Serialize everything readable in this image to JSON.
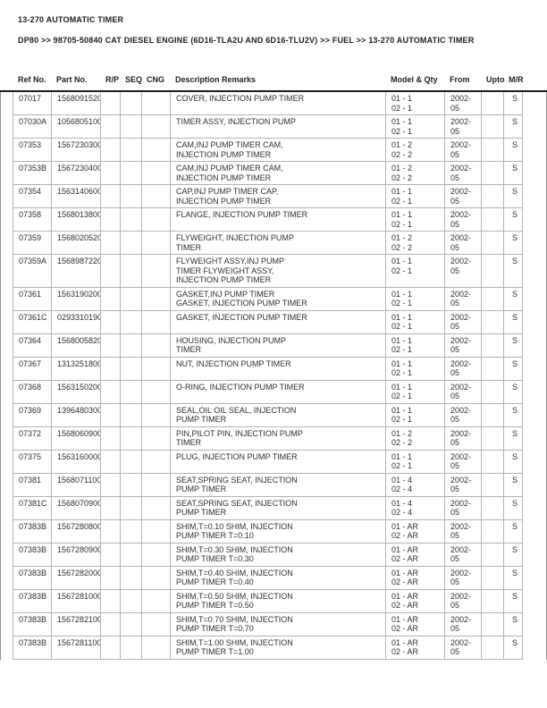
{
  "page": {
    "title": "13-270 AUTOMATIC TIMER",
    "breadcrumb": "DP80 >> 98705-50840 CAT DIESEL ENGINE (6D16-TLA2U AND 6D16-TLU2V) >> FUEL >> 13-270 AUTOMATIC TIMER"
  },
  "colors": {
    "rule": "#1c1c1c",
    "grid": "#b3b3b3",
    "text": "#2f2f2f",
    "page_edge": "#8f8f8f"
  },
  "table": {
    "headers": [
      "Ref No.",
      "Part No.",
      "R/P",
      "SEQ",
      "CNG",
      "Description Remarks",
      "Model & Qty",
      "From",
      "Upto",
      "M/R"
    ],
    "rows": [
      {
        "ref_no": "07017",
        "part_no": "1568091520",
        "rp": "",
        "seq": "",
        "cng": "",
        "description": [
          "COVER, INJECTION PUMP TIMER"
        ],
        "model_qty": [
          "01 - 1",
          "02 - 1"
        ],
        "from": "2002-05",
        "upto": "",
        "mr": "S"
      },
      {
        "ref_no": "07030A",
        "part_no": "1056805100",
        "rp": "",
        "seq": "",
        "cng": "",
        "description": [
          "TIMER ASSY, INJECTION PUMP"
        ],
        "model_qty": [
          "01 - 1",
          "02 - 1"
        ],
        "from": "2002-05",
        "upto": "",
        "mr": "S"
      },
      {
        "ref_no": "07353",
        "part_no": "1567230300",
        "rp": "",
        "seq": "",
        "cng": "",
        "description": [
          "CAM,INJ PUMP TIMER CAM,",
          "INJECTION PUMP TIMER"
        ],
        "model_qty": [
          "01 - 2",
          "02 - 2"
        ],
        "from": "2002-05",
        "upto": "",
        "mr": "S"
      },
      {
        "ref_no": "07353B",
        "part_no": "1567230400",
        "rp": "",
        "seq": "",
        "cng": "",
        "description": [
          "CAM,INJ PUMP TIMER CAM,",
          "INJECTION PUMP TIMER"
        ],
        "model_qty": [
          "01 - 2",
          "02 - 2"
        ],
        "from": "2002-05",
        "upto": "",
        "mr": "S"
      },
      {
        "ref_no": "07354",
        "part_no": "1563140600",
        "rp": "",
        "seq": "",
        "cng": "",
        "description": [
          "CAP,INJ PUMP TIMER CAP,",
          "INJECTION PUMP TIMER"
        ],
        "model_qty": [
          "01 - 1",
          "02 - 1"
        ],
        "from": "2002-05",
        "upto": "",
        "mr": "S"
      },
      {
        "ref_no": "07358",
        "part_no": "1568013800",
        "rp": "",
        "seq": "",
        "cng": "",
        "description": [
          "FLANGE, INJECTION PUMP TIMER"
        ],
        "model_qty": [
          "01 - 1",
          "02 - 1"
        ],
        "from": "2002-05",
        "upto": "",
        "mr": "S"
      },
      {
        "ref_no": "07359",
        "part_no": "1568020520",
        "rp": "",
        "seq": "",
        "cng": "",
        "description": [
          "FLYWEIGHT, INJECTION PUMP",
          "TIMER"
        ],
        "model_qty": [
          "01 - 2",
          "02 - 2"
        ],
        "from": "2002-05",
        "upto": "",
        "mr": "S"
      },
      {
        "ref_no": "07359A",
        "part_no": "1568987220",
        "rp": "",
        "seq": "",
        "cng": "",
        "description": [
          "FLYWEIGHT ASSY,INJ PUMP",
          "TIMER FLYWEIGHT ASSY,",
          "INJECTION PUMP TIMER"
        ],
        "model_qty": [
          "01 - 1",
          "02 - 1"
        ],
        "from": "2002-05",
        "upto": "",
        "mr": "S"
      },
      {
        "ref_no": "07361",
        "part_no": "1563190200",
        "rp": "",
        "seq": "",
        "cng": "",
        "description": [
          "GASKET,INJ PUMP TIMER",
          "GASKET, INJECTION PUMP TIMER"
        ],
        "model_qty": [
          "01 - 1",
          "02 - 1"
        ],
        "from": "2002-05",
        "upto": "",
        "mr": "S"
      },
      {
        "ref_no": "07361C",
        "part_no": "0293310190",
        "rp": "",
        "seq": "",
        "cng": "",
        "description": [
          "GASKET, INJECTION PUMP TIMER"
        ],
        "model_qty": [
          "01 - 1",
          "02 - 1"
        ],
        "from": "2002-05",
        "upto": "",
        "mr": "S"
      },
      {
        "ref_no": "07364",
        "part_no": "1568005820",
        "rp": "",
        "seq": "",
        "cng": "",
        "description": [
          "HOUSING, INJECTION PUMP",
          "TIMER"
        ],
        "model_qty": [
          "01 - 1",
          "02 - 1"
        ],
        "from": "2002-05",
        "upto": "",
        "mr": "S"
      },
      {
        "ref_no": "07367",
        "part_no": "1313251800",
        "rp": "",
        "seq": "",
        "cng": "",
        "description": [
          "NUT, INJECTION PUMP TIMER"
        ],
        "model_qty": [
          "01 - 1",
          "02 - 1"
        ],
        "from": "2002-05",
        "upto": "",
        "mr": "S"
      },
      {
        "ref_no": "07368",
        "part_no": "1563150200",
        "rp": "",
        "seq": "",
        "cng": "",
        "description": [
          "O-RING, INJECTION PUMP TIMER"
        ],
        "model_qty": [
          "01 - 1",
          "02 - 1"
        ],
        "from": "2002-05",
        "upto": "",
        "mr": "S"
      },
      {
        "ref_no": "07369",
        "part_no": "1396480300",
        "rp": "",
        "seq": "",
        "cng": "",
        "description": [
          "SEAL,OIL OIL SEAL, INJECTION",
          "PUMP TIMER"
        ],
        "model_qty": [
          "01 - 1",
          "02 - 1"
        ],
        "from": "2002-05",
        "upto": "",
        "mr": "S"
      },
      {
        "ref_no": "07372",
        "part_no": "1568060900",
        "rp": "",
        "seq": "",
        "cng": "",
        "description": [
          "PIN,PILOT PIN, INJECTION PUMP",
          "TIMER"
        ],
        "model_qty": [
          "01 - 2",
          "02 - 2"
        ],
        "from": "2002-05",
        "upto": "",
        "mr": "S"
      },
      {
        "ref_no": "07375",
        "part_no": "1563160000",
        "rp": "",
        "seq": "",
        "cng": "",
        "description": [
          "PLUG, INJECTION PUMP TIMER"
        ],
        "model_qty": [
          "01 - 1",
          "02 - 1"
        ],
        "from": "2002-05",
        "upto": "",
        "mr": "S"
      },
      {
        "ref_no": "07381",
        "part_no": "1568071100",
        "rp": "",
        "seq": "",
        "cng": "",
        "description": [
          "SEAT,SPRING SEAT, INJECTION",
          "PUMP TIMER"
        ],
        "model_qty": [
          "01 - 4",
          "02 - 4"
        ],
        "from": "2002-05",
        "upto": "",
        "mr": "S"
      },
      {
        "ref_no": "07381C",
        "part_no": "1568070900",
        "rp": "",
        "seq": "",
        "cng": "",
        "description": [
          "SEAT,SPRING SEAT, INJECTION",
          "PUMP TIMER"
        ],
        "model_qty": [
          "01 - 4",
          "02 - 4"
        ],
        "from": "2002-05",
        "upto": "",
        "mr": "S"
      },
      {
        "ref_no": "07383B",
        "part_no": "1567280800",
        "rp": "",
        "seq": "",
        "cng": "",
        "description": [
          "SHIM,T=0.10 SHIM, INJECTION",
          "PUMP TIMER T=0.10"
        ],
        "model_qty": [
          "01 - AR",
          "02 - AR"
        ],
        "from": "2002-05",
        "upto": "",
        "mr": "S"
      },
      {
        "ref_no": "07383B",
        "part_no": "1567280900",
        "rp": "",
        "seq": "",
        "cng": "",
        "description": [
          "SHIM,T=0.30 SHIM, INJECTION",
          "PUMP TIMER T=0.30"
        ],
        "model_qty": [
          "01 - AR",
          "02 - AR"
        ],
        "from": "2002-05",
        "upto": "",
        "mr": "S"
      },
      {
        "ref_no": "07383B",
        "part_no": "1567282000",
        "rp": "",
        "seq": "",
        "cng": "",
        "description": [
          "SHIM,T=0.40 SHIM, INJECTION",
          "PUMP TIMER T=0.40"
        ],
        "model_qty": [
          "01 - AR",
          "02 - AR"
        ],
        "from": "2002-05",
        "upto": "",
        "mr": "S"
      },
      {
        "ref_no": "07383B",
        "part_no": "1567281000",
        "rp": "",
        "seq": "",
        "cng": "",
        "description": [
          "SHIM,T=0.50 SHIM, INJECTION",
          "PUMP TIMER T=0.50"
        ],
        "model_qty": [
          "01 - AR",
          "02 - AR"
        ],
        "from": "2002-05",
        "upto": "",
        "mr": "S"
      },
      {
        "ref_no": "07383B",
        "part_no": "1567282100",
        "rp": "",
        "seq": "",
        "cng": "",
        "description": [
          "SHIM,T=0.70 SHIM, INJECTION",
          "PUMP TIMER T=0.70"
        ],
        "model_qty": [
          "01 - AR",
          "02 - AR"
        ],
        "from": "2002-05",
        "upto": "",
        "mr": "S"
      },
      {
        "ref_no": "07383B",
        "part_no": "1567281100",
        "rp": "",
        "seq": "",
        "cng": "",
        "description": [
          "SHIM,T=1.00 SHIM, INJECTION",
          "PUMP TIMER T=1.00"
        ],
        "model_qty": [
          "01 - AR",
          "02 - AR"
        ],
        "from": "2002-05",
        "upto": "",
        "mr": "S"
      }
    ]
  }
}
